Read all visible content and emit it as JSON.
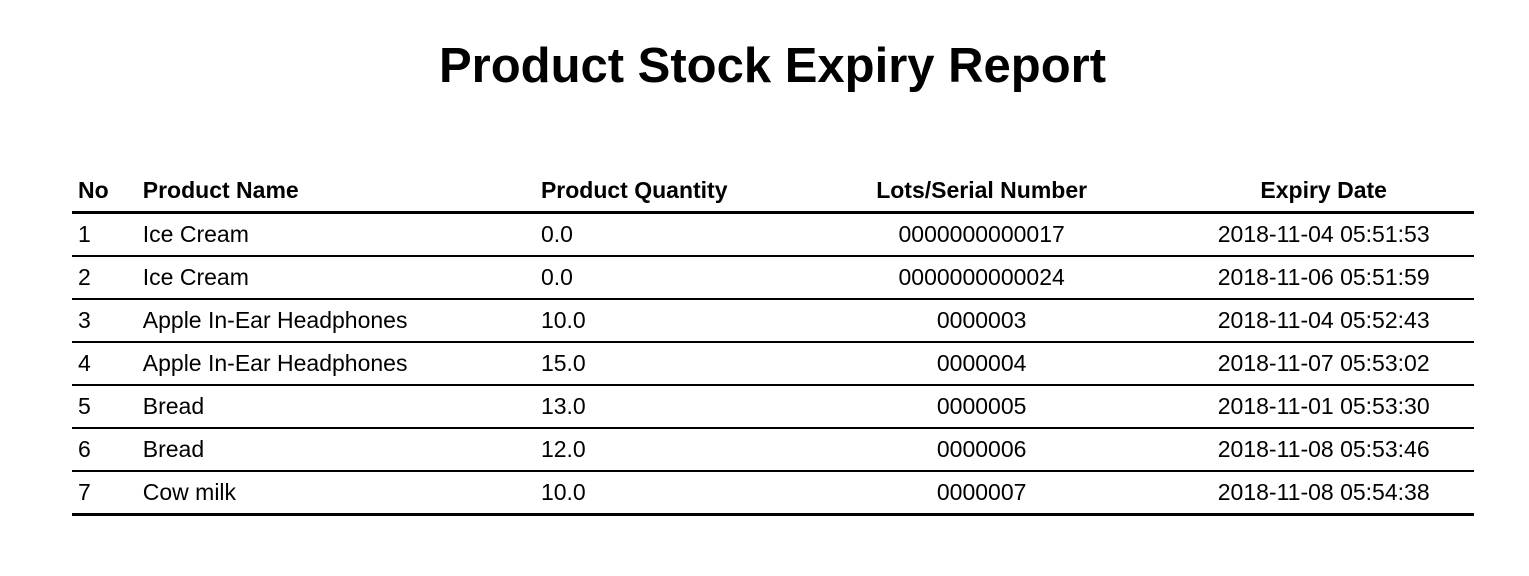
{
  "report": {
    "title": "Product Stock Expiry Report"
  },
  "table": {
    "headers": {
      "no": "No",
      "name": "Product Name",
      "quantity": "Product Quantity",
      "lot": "Lots/Serial Number",
      "expiry": "Expiry Date"
    },
    "rows": [
      {
        "no": "1",
        "name": "Ice Cream",
        "quantity": "0.0",
        "lot": "0000000000017",
        "expiry": "2018-11-04 05:51:53"
      },
      {
        "no": "2",
        "name": "Ice Cream",
        "quantity": "0.0",
        "lot": "0000000000024",
        "expiry": "2018-11-06 05:51:59"
      },
      {
        "no": "3",
        "name": "Apple In-Ear Headphones",
        "quantity": "10.0",
        "lot": "0000003",
        "expiry": "2018-11-04 05:52:43"
      },
      {
        "no": "4",
        "name": "Apple In-Ear Headphones",
        "quantity": "15.0",
        "lot": "0000004",
        "expiry": "2018-11-07 05:53:02"
      },
      {
        "no": "5",
        "name": "Bread",
        "quantity": "13.0",
        "lot": "0000005",
        "expiry": "2018-11-01 05:53:30"
      },
      {
        "no": "6",
        "name": "Bread",
        "quantity": "12.0",
        "lot": "0000006",
        "expiry": "2018-11-08 05:53:46"
      },
      {
        "no": "7",
        "name": "Cow milk",
        "quantity": "10.0",
        "lot": "0000007",
        "expiry": "2018-11-08 05:54:38"
      }
    ]
  }
}
